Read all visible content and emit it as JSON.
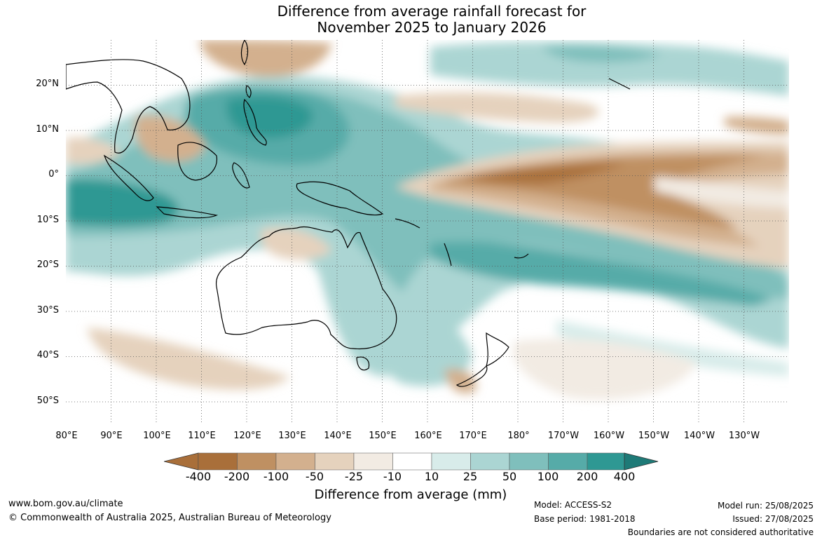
{
  "title": {
    "line1": "Difference from average rainfall forecast for",
    "line2": "November 2025 to January 2026"
  },
  "axes": {
    "lat_labels": [
      "20°N",
      "10°N",
      "0°",
      "10°S",
      "20°S",
      "30°S",
      "40°S",
      "50°S"
    ],
    "lat_values": [
      20,
      10,
      0,
      -10,
      -20,
      -30,
      -40,
      -50
    ],
    "lon_labels": [
      "80°E",
      "90°E",
      "100°E",
      "110°E",
      "120°E",
      "130°E",
      "140°E",
      "150°E",
      "160°E",
      "170°E",
      "180°",
      "170°W",
      "160°W",
      "150°W",
      "140°W",
      "130°W"
    ],
    "lon_values": [
      80,
      90,
      100,
      110,
      120,
      130,
      140,
      150,
      160,
      170,
      180,
      190,
      200,
      210,
      220,
      230
    ],
    "lon_range": [
      80,
      240
    ],
    "lat_range": [
      -55,
      30
    ],
    "gridlines": "dotted"
  },
  "colorbar": {
    "label": "Difference from average (mm)",
    "ticks": [
      "-400",
      "-200",
      "-100",
      "-50",
      "-25",
      "-10",
      "10",
      "25",
      "50",
      "100",
      "200",
      "400"
    ],
    "colors": [
      "#a96f3a",
      "#bf9062",
      "#d3b08e",
      "#e5d2bd",
      "#f2ebe3",
      "#ffffff",
      "#d8ecea",
      "#abd5d3",
      "#7fbfbc",
      "#56aba8",
      "#2e9893",
      "#1e7a77"
    ]
  },
  "footer": {
    "website": "www.bom.gov.au/climate",
    "copyright": "© Commonwealth of Australia 2025, Australian Bureau of Meteorology",
    "model": "Model: ACCESS-S2",
    "base_period": "Base period: 1981-2018",
    "model_run": "Model run: 25/08/2025",
    "issued": "Issued: 27/08/2025",
    "disclaimer": "Boundaries are not considered authoritative"
  }
}
